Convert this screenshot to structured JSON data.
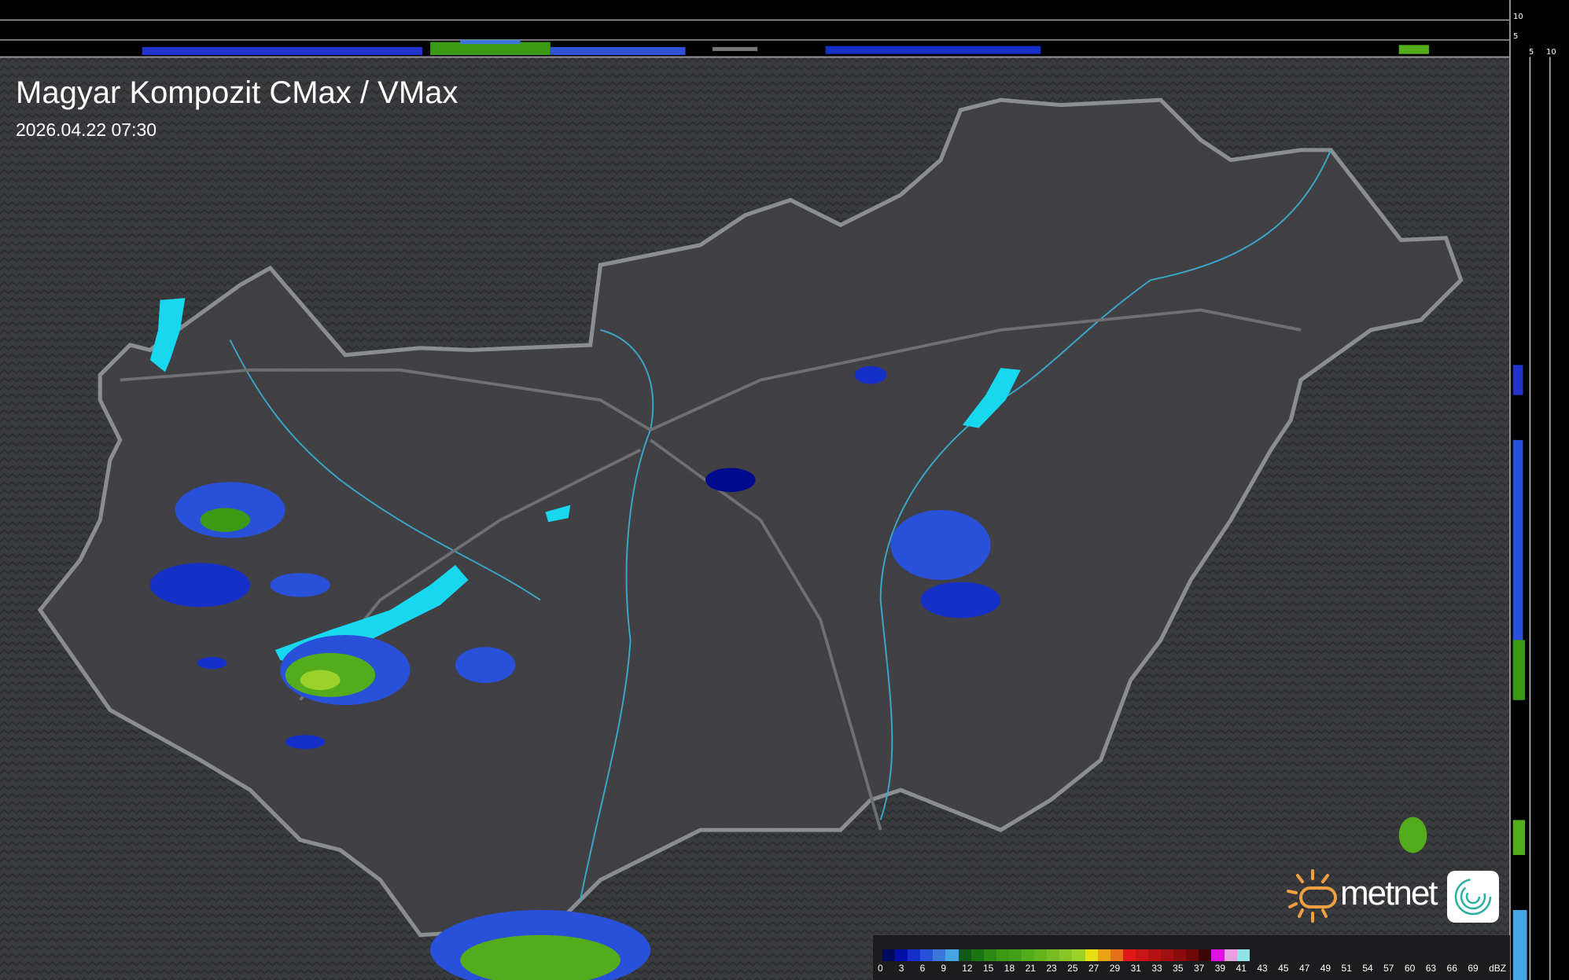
{
  "header": {
    "title": "Magyar Kompozit CMax / VMax",
    "timestamp": "2026.04.22 07:30"
  },
  "profile_axes": {
    "top_labels": [
      "10",
      "5"
    ],
    "right_labels": [
      "5",
      "10"
    ]
  },
  "legend": {
    "unit": "dBZ",
    "labels": [
      "0",
      "3",
      "6",
      "9",
      "12",
      "15",
      "18",
      "21",
      "23",
      "25",
      "27",
      "29",
      "31",
      "33",
      "35",
      "37",
      "39",
      "41",
      "43",
      "45",
      "47",
      "49",
      "51",
      "54",
      "57",
      "60",
      "63",
      "66",
      "69"
    ],
    "colors": [
      "#000a5e",
      "#0010a8",
      "#1430c8",
      "#2850d8",
      "#3c78dc",
      "#44a4e4",
      "#0f5a14",
      "#1a7414",
      "#2a8a14",
      "#3a9a16",
      "#44a01a",
      "#52ac1c",
      "#64b41e",
      "#76bc22",
      "#88c626",
      "#9ad22a",
      "#e6e012",
      "#e8a414",
      "#e47018",
      "#e01818",
      "#c81616",
      "#b41212",
      "#a01010",
      "#8a0c0c",
      "#700808",
      "#3c0404",
      "#e010e0",
      "#e8a0e0",
      "#90e4e8"
    ]
  },
  "branding": {
    "logo_text": "metnet"
  }
}
